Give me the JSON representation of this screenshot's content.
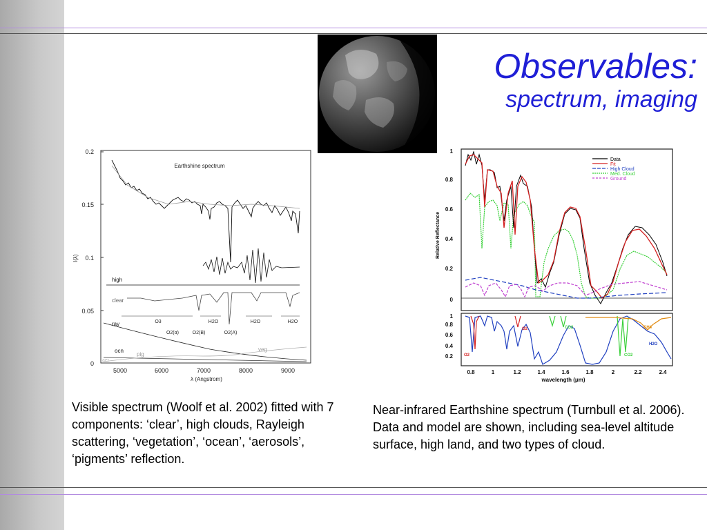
{
  "colors": {
    "title": "#1f1fd6",
    "rule": "#b28be0",
    "sidebar": "#b8b8b8"
  },
  "slide": {
    "title": "Observables:",
    "subtitle": "spectrum, imaging"
  },
  "left_figure": {
    "plot_title": "Earthshine spectrum",
    "xlabel": "λ (Angstrom)",
    "ylabel": "I(λ)",
    "x_ticks": [
      "5000",
      "6000",
      "7000",
      "8000",
      "9000"
    ],
    "y_ticks": [
      "0",
      "0.05",
      "0.1",
      "0.15",
      "0.2"
    ],
    "component_labels": {
      "high": "high",
      "clear": "clear",
      "ray": "ray",
      "ocn": "ocn",
      "pig": "pig",
      "aer": "aer",
      "veg": "veg"
    },
    "band_labels": [
      "O3",
      "H2O",
      "H2O",
      "H2O",
      "O2(α)",
      "O2(B)",
      "O2(A)"
    ]
  },
  "right_figure": {
    "xlabel": "wavelength (μm)",
    "ylabel": "Relative Reflectance",
    "x_ticks": [
      "0.8",
      "1",
      "1.2",
      "1.4",
      "1.6",
      "1.8",
      "2",
      "2.2",
      "2.4"
    ],
    "y_ticks_top": [
      "0",
      "0.2",
      "0.4",
      "0.6",
      "0.8",
      "1"
    ],
    "y_ticks_bottom": [
      "0.2",
      "0.4",
      "0.6",
      "0.8",
      "1"
    ],
    "legend": [
      {
        "label": "Data",
        "color": "#000000"
      },
      {
        "label": "Fit",
        "color": "#d42020"
      },
      {
        "label": "High Cloud",
        "color": "#2040c0"
      },
      {
        "label": "Med. Cloud",
        "color": "#38d038"
      },
      {
        "label": "Ground",
        "color": "#c040d0"
      }
    ],
    "molecule_labels": [
      "O2",
      "O2",
      "CO2",
      "CH4",
      "CO2",
      "H2O"
    ]
  },
  "captions": {
    "left": "Visible spectrum (Woolf et al. 2002) fitted with 7 components: ‘clear’, high clouds, Rayleigh scattering, ‘vegetation’, ‘ocean’, ‘aerosols’, ‘pigments’ reflection.",
    "right": "Near-infrared Earthshine spectrum (Turnbull et al. 2006). Data and model are shown, including sea-level altitude surface, high land, and two types of cloud."
  }
}
